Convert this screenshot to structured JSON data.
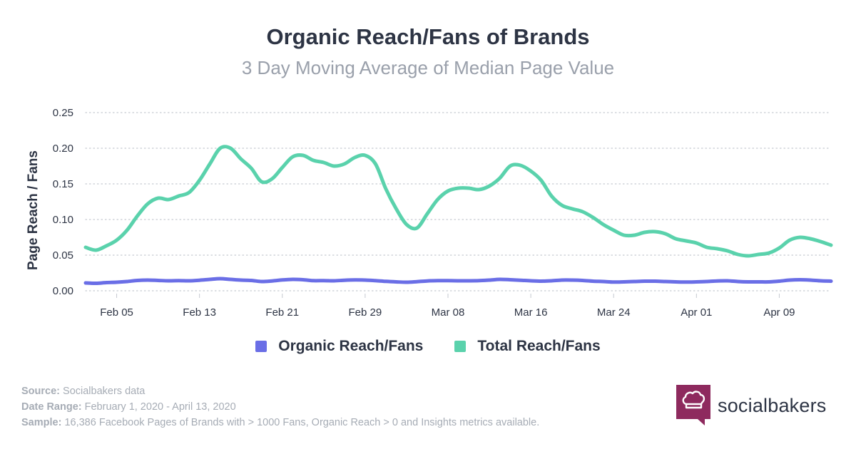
{
  "header": {
    "title": "Organic Reach/Fans of Brands",
    "subtitle": "3 Day Moving Average of Median Page Value"
  },
  "chart_data": {
    "type": "line",
    "title": "Organic Reach/Fans of Brands",
    "subtitle": "3 Day Moving Average of Median Page Value",
    "xlabel": "",
    "ylabel": "Page Reach / Fans",
    "ylim": [
      0,
      0.25
    ],
    "yticks": [
      "0.00",
      "0.05",
      "0.10",
      "0.15",
      "0.20",
      "0.25"
    ],
    "grid": true,
    "legend_position": "bottom",
    "x_start": "Feb 02",
    "x_end": "Apr 13",
    "x_tick_labels": [
      "Feb 05",
      "Feb 13",
      "Feb 21",
      "Feb 29",
      "Mar 08",
      "Mar 16",
      "Mar 24",
      "Apr 01",
      "Apr 09"
    ],
    "x_tick_day_index": [
      3,
      11,
      19,
      27,
      35,
      43,
      51,
      59,
      67
    ],
    "series": [
      {
        "name": "Organic Reach/Fans",
        "color": "#6a6ee6",
        "values": [
          0.011,
          0.0105,
          0.0115,
          0.012,
          0.013,
          0.0145,
          0.015,
          0.0145,
          0.014,
          0.0142,
          0.014,
          0.0148,
          0.016,
          0.017,
          0.016,
          0.015,
          0.0145,
          0.013,
          0.0138,
          0.0152,
          0.016,
          0.0155,
          0.0142,
          0.0143,
          0.014,
          0.0148,
          0.0152,
          0.015,
          0.0142,
          0.0132,
          0.0125,
          0.012,
          0.0128,
          0.0138,
          0.0142,
          0.0142,
          0.014,
          0.014,
          0.0142,
          0.015,
          0.016,
          0.0155,
          0.0148,
          0.014,
          0.0135,
          0.014,
          0.015,
          0.015,
          0.0145,
          0.0135,
          0.013,
          0.0122,
          0.0125,
          0.013,
          0.0135,
          0.0135,
          0.013,
          0.0125,
          0.0122,
          0.0125,
          0.013,
          0.0138,
          0.014,
          0.013,
          0.0125,
          0.0125,
          0.0125,
          0.0135,
          0.015,
          0.0155,
          0.015,
          0.014,
          0.0135
        ]
      },
      {
        "name": "Total Reach/Fans",
        "color": "#5ad2ac",
        "values": [
          0.061,
          0.057,
          0.063,
          0.071,
          0.085,
          0.105,
          0.122,
          0.13,
          0.128,
          0.133,
          0.138,
          0.155,
          0.178,
          0.2,
          0.2,
          0.185,
          0.172,
          0.153,
          0.157,
          0.173,
          0.188,
          0.19,
          0.183,
          0.18,
          0.175,
          0.178,
          0.187,
          0.19,
          0.178,
          0.143,
          0.115,
          0.093,
          0.088,
          0.108,
          0.128,
          0.14,
          0.144,
          0.144,
          0.142,
          0.147,
          0.158,
          0.175,
          0.176,
          0.168,
          0.155,
          0.133,
          0.12,
          0.115,
          0.111,
          0.103,
          0.093,
          0.085,
          0.078,
          0.078,
          0.082,
          0.083,
          0.08,
          0.073,
          0.07,
          0.067,
          0.061,
          0.059,
          0.056,
          0.051,
          0.049,
          0.051,
          0.053,
          0.06,
          0.071,
          0.075,
          0.073,
          0.069,
          0.064
        ]
      }
    ]
  },
  "legend": {
    "items": [
      {
        "label": "Organic Reach/Fans",
        "color": "#6a6ee6"
      },
      {
        "label": "Total Reach/Fans",
        "color": "#5ad2ac"
      }
    ]
  },
  "footer": {
    "source_label": "Source:",
    "source_value": "Socialbakers data",
    "date_label": "Date Range:",
    "date_value": "February 1, 2020 - April 13, 2020",
    "sample_label": "Sample:",
    "sample_value": "16,386 Facebook Pages of Brands with > 1000 Fans, Organic Reach > 0 and Insights metrics available."
  },
  "brand": {
    "name": "socialbakers",
    "logo_color": "#8e2a5e",
    "logo_icon": "chef-hat-icon"
  }
}
